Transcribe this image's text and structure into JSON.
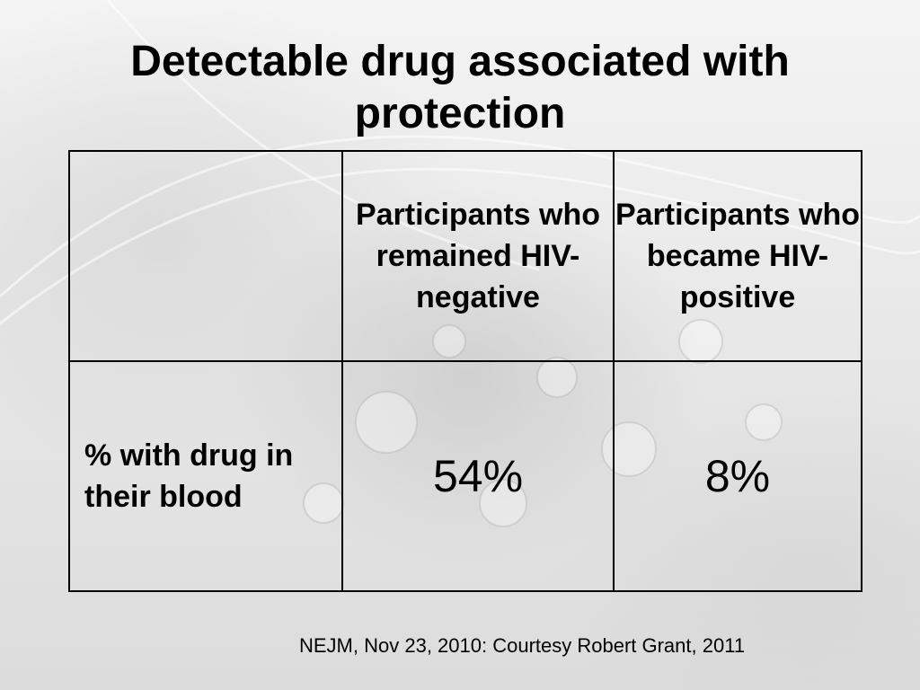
{
  "slide": {
    "title_line1": "Detectable drug associated with",
    "title_line2": "protection",
    "table": {
      "column_headers": [
        "",
        "Participants who remained HIV-negative",
        "Participants who became HIV-positive"
      ],
      "rows": [
        {
          "label": "% with drug in their blood",
          "values": [
            "54%",
            "8%"
          ]
        }
      ]
    },
    "citation": "NEJM, Nov 23, 2010: Courtesy Robert Grant, 2011"
  }
}
